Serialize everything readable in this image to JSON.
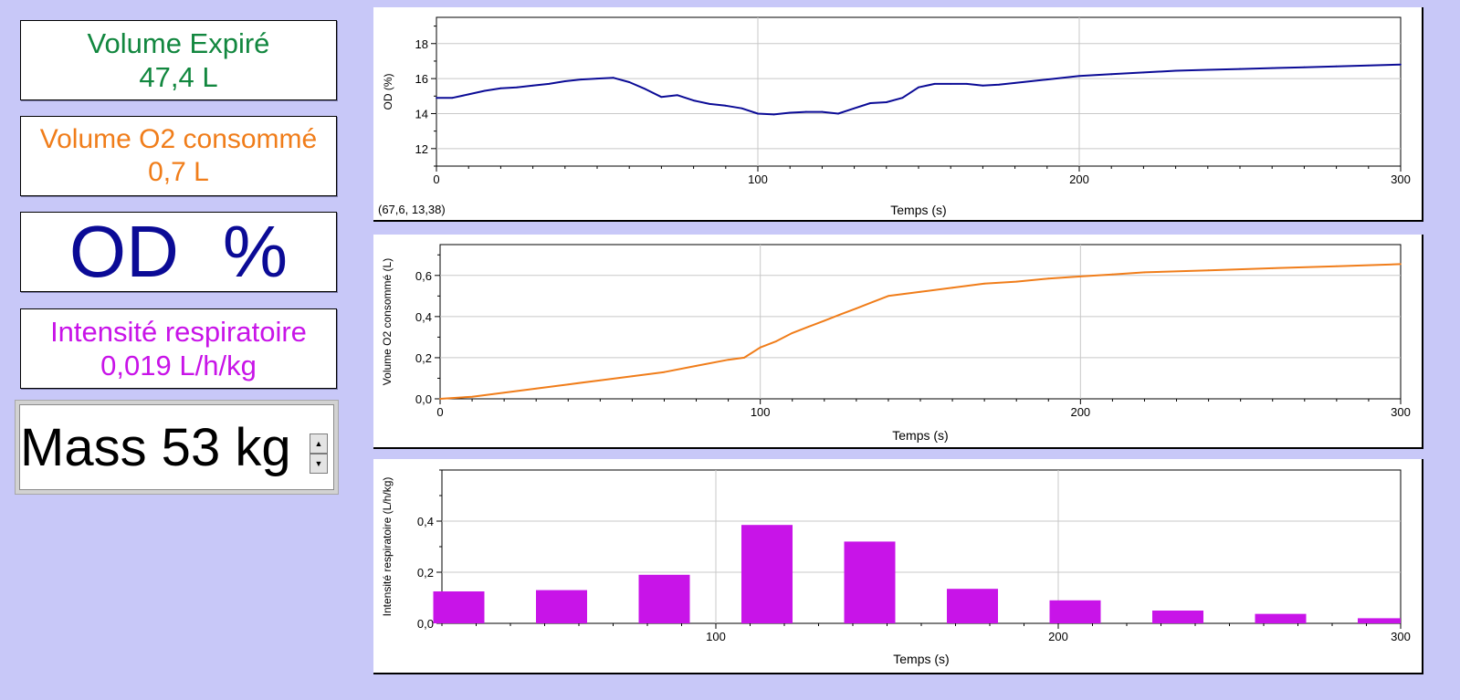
{
  "meters": {
    "volume_expire": {
      "label": "Volume Expiré",
      "value": "47,4 L",
      "color": "#12873f"
    },
    "volume_o2": {
      "label": "Volume O2 consommé",
      "value": "0,7 L",
      "color": "#f07d1a"
    },
    "od": {
      "label": "OD",
      "unit": "%",
      "color": "#0b0b96"
    },
    "intensite": {
      "label": "Intensité respiratoire",
      "value": "0,019 L/h/kg",
      "color": "#c814e8"
    }
  },
  "mass": {
    "label": "Mass 53 kg",
    "up_arrow": "▲",
    "down_arrow": "▼"
  },
  "chart_data": [
    {
      "type": "line",
      "title": "",
      "xlabel": "Temps (s)",
      "ylabel": "OD (%)",
      "xlim": [
        0,
        300
      ],
      "ylim": [
        11,
        19.5
      ],
      "xticks": [
        0,
        100,
        200,
        300
      ],
      "yticks": [
        12,
        14,
        16,
        18
      ],
      "xtick_labels": [
        "0",
        "100",
        "200",
        "300"
      ],
      "ytick_labels": [
        "12",
        "14",
        "16",
        "18"
      ],
      "grid": true,
      "color": "#0b0b96",
      "coordinate_readout": "(67,6, 13,38)",
      "series": [
        {
          "x": [
            0,
            5,
            10,
            15,
            20,
            25,
            30,
            35,
            40,
            45,
            50,
            55,
            60,
            65,
            70,
            75,
            80,
            85,
            90,
            95,
            100,
            105,
            110,
            115,
            120,
            125,
            130,
            135,
            140,
            145,
            150,
            155,
            160,
            165,
            170,
            175,
            180,
            190,
            200,
            210,
            220,
            230,
            240,
            250,
            260,
            270,
            280,
            290,
            300
          ],
          "y": [
            14.9,
            14.9,
            15.1,
            15.3,
            15.45,
            15.5,
            15.6,
            15.7,
            15.85,
            15.95,
            16.0,
            16.05,
            15.8,
            15.4,
            14.95,
            15.05,
            14.75,
            14.55,
            14.45,
            14.3,
            14.0,
            13.95,
            14.05,
            14.1,
            14.1,
            14.0,
            14.3,
            14.6,
            14.65,
            14.9,
            15.5,
            15.7,
            15.7,
            15.7,
            15.6,
            15.65,
            15.75,
            15.95,
            16.15,
            16.25,
            16.35,
            16.45,
            16.5,
            16.55,
            16.6,
            16.65,
            16.7,
            16.75,
            16.8
          ]
        }
      ]
    },
    {
      "type": "line",
      "title": "",
      "xlabel": "Temps (s)",
      "ylabel": "Volume O2 consommé (L)",
      "xlim": [
        0,
        300
      ],
      "ylim": [
        0,
        0.75
      ],
      "xticks": [
        0,
        100,
        200,
        300
      ],
      "yticks": [
        0,
        0.2,
        0.4,
        0.6
      ],
      "xtick_labels": [
        "0",
        "100",
        "200",
        "300"
      ],
      "ytick_labels": [
        "0,0",
        "0,2",
        "0,4",
        "0,6"
      ],
      "grid": true,
      "color": "#f07d1a",
      "series": [
        {
          "x": [
            0,
            10,
            20,
            30,
            40,
            50,
            60,
            70,
            80,
            90,
            95,
            100,
            105,
            110,
            115,
            120,
            125,
            130,
            135,
            140,
            150,
            160,
            170,
            180,
            190,
            200,
            210,
            220,
            240,
            260,
            280,
            300
          ],
          "y": [
            0.0,
            0.01,
            0.03,
            0.05,
            0.07,
            0.09,
            0.11,
            0.13,
            0.16,
            0.19,
            0.2,
            0.25,
            0.28,
            0.32,
            0.35,
            0.38,
            0.41,
            0.44,
            0.47,
            0.5,
            0.52,
            0.54,
            0.56,
            0.57,
            0.585,
            0.595,
            0.605,
            0.615,
            0.625,
            0.635,
            0.645,
            0.655
          ]
        }
      ]
    },
    {
      "type": "bar",
      "title": "",
      "xlabel": "Temps (s)",
      "ylabel": "Intensité respiratoire (L/h/kg)",
      "xlim": [
        20,
        300
      ],
      "ylim": [
        0,
        0.6
      ],
      "xticks": [
        100,
        200,
        300
      ],
      "yticks": [
        0,
        0.2,
        0.4
      ],
      "xtick_labels": [
        "100",
        "200",
        "300"
      ],
      "ytick_labels": [
        "0,0",
        "0,2",
        "0,4"
      ],
      "grid": true,
      "color": "#c814e8",
      "categories": [
        30,
        60,
        90,
        120,
        150,
        180,
        210,
        240,
        270,
        300
      ],
      "values": [
        0.125,
        0.13,
        0.19,
        0.385,
        0.32,
        0.135,
        0.09,
        0.05,
        0.037,
        0.02
      ]
    }
  ]
}
